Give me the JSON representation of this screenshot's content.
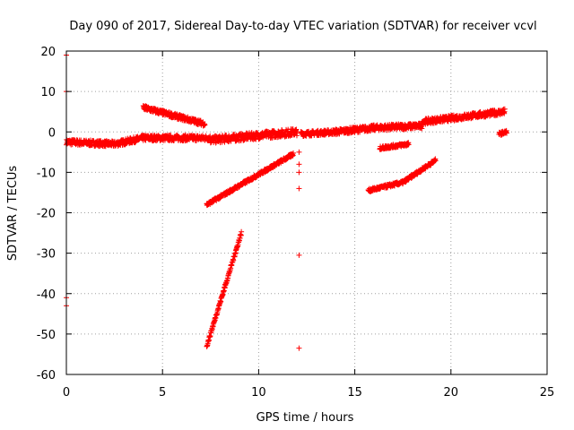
{
  "chart_data": {
    "type": "scatter",
    "title": "Day 090 of 2017, Sidereal Day-to-day VTEC variation (SDTVAR) for receiver vcvl",
    "xlabel": "GPS time / hours",
    "ylabel": "SDTVAR / TECUs",
    "xlim": [
      0,
      25
    ],
    "ylim": [
      -60,
      20
    ],
    "xticks": [
      0,
      5,
      10,
      15,
      20,
      25
    ],
    "yticks": [
      -60,
      -50,
      -40,
      -30,
      -20,
      -10,
      0,
      10,
      20
    ],
    "grid": true,
    "marker": "+",
    "color": "#ff0000",
    "segments": [
      {
        "x0": 0.0,
        "x1": 2.5,
        "y0": -2.5,
        "y1": -3.0,
        "spread": 1.4
      },
      {
        "x0": 2.5,
        "x1": 4.0,
        "y0": -3.0,
        "y1": -1.5,
        "spread": 1.4
      },
      {
        "x0": 4.0,
        "x1": 7.5,
        "y0": -1.5,
        "y1": -1.5,
        "spread": 1.4
      },
      {
        "x0": 7.5,
        "x1": 12.0,
        "y0": -2.0,
        "y1": 0.0,
        "spread": 1.8
      },
      {
        "x0": 12.2,
        "x1": 14.0,
        "y0": -0.5,
        "y1": 0.0,
        "spread": 1.2
      },
      {
        "x0": 14.0,
        "x1": 16.0,
        "y0": 0.0,
        "y1": 1.0,
        "spread": 1.4
      },
      {
        "x0": 16.0,
        "x1": 18.5,
        "y0": 1.0,
        "y1": 1.5,
        "spread": 1.4
      },
      {
        "x0": 18.5,
        "x1": 22.8,
        "y0": 2.5,
        "y1": 5.0,
        "spread": 1.4
      },
      {
        "x0": 4.0,
        "x1": 7.2,
        "y0": 6.0,
        "y1": 2.0,
        "spread": 1.2
      },
      {
        "x0": 7.3,
        "x1": 11.8,
        "y0": -18.0,
        "y1": -5.5,
        "spread": 0.8
      },
      {
        "x0": 7.3,
        "x1": 9.1,
        "y0": -53.0,
        "y1": -25.0,
        "spread": 0.8
      },
      {
        "x0": 15.7,
        "x1": 17.5,
        "y0": -14.5,
        "y1": -12.5,
        "spread": 0.8
      },
      {
        "x0": 17.5,
        "x1": 19.2,
        "y0": -12.5,
        "y1": -7.0,
        "spread": 0.8
      },
      {
        "x0": 16.3,
        "x1": 17.8,
        "y0": -4.0,
        "y1": -3.0,
        "spread": 0.8
      },
      {
        "x0": 22.5,
        "x1": 22.9,
        "y0": -0.5,
        "y1": 0.0,
        "spread": 0.8
      }
    ],
    "points": [
      {
        "x": 0.0,
        "y": 19.0
      },
      {
        "x": 0.0,
        "y": 10.0
      },
      {
        "x": 0.0,
        "y": -41.0
      },
      {
        "x": 0.0,
        "y": -43.0
      },
      {
        "x": 12.1,
        "y": -5.0
      },
      {
        "x": 12.1,
        "y": -8.0
      },
      {
        "x": 12.1,
        "y": -10.0
      },
      {
        "x": 12.1,
        "y": -14.0
      },
      {
        "x": 12.1,
        "y": -30.5
      },
      {
        "x": 12.1,
        "y": -53.5
      }
    ]
  }
}
